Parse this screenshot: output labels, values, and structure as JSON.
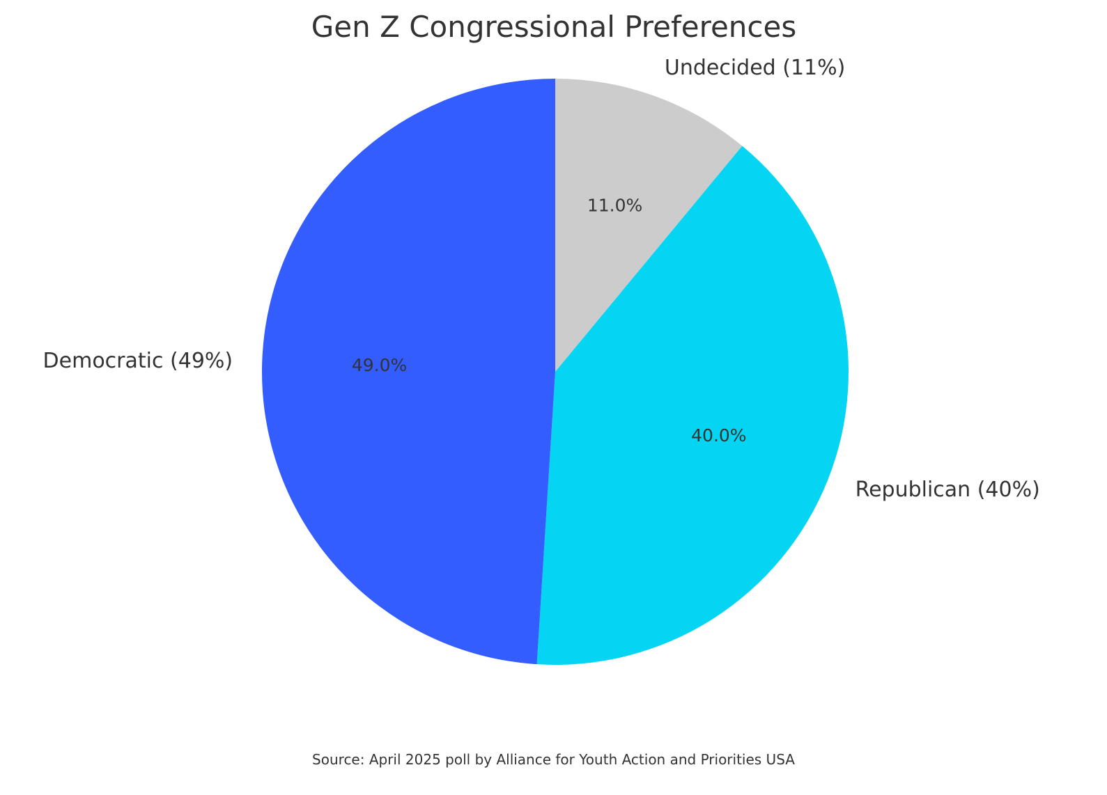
{
  "chart_data": {
    "type": "pie",
    "title": "Gen Z Congressional Preferences",
    "start_angle_deg": 90,
    "direction": "clockwise",
    "slices": [
      {
        "name": "Undecided",
        "label": "Undecided (11%)",
        "value": 11.0,
        "pct_label": "11.0%",
        "color": "#cccccc"
      },
      {
        "name": "Republican",
        "label": "Republican (40%)",
        "value": 40.0,
        "pct_label": "40.0%",
        "color": "#05d5f3"
      },
      {
        "name": "Democratic",
        "label": "Democratic (49%)",
        "value": 49.0,
        "pct_label": "49.0%",
        "color": "#335dff"
      }
    ]
  },
  "footer": {
    "source": "Source: April 2025 poll by Alliance for Youth Action and Priorities USA"
  }
}
